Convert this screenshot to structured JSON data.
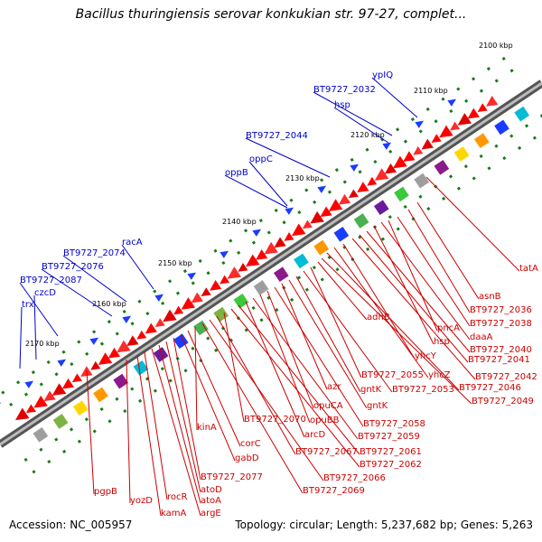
{
  "title": "Bacillus thuringiensis serovar konkukian str. 97-27, complet...",
  "footer": {
    "accession": "Accession: NC_005957",
    "stats": "Topology: circular; Length: 5,237,682 bp; Genes: 5,263"
  },
  "colors": {
    "forward_label": "#0000cc",
    "reverse_label": "#cc0000",
    "backbone": "#777777",
    "feature_red": "#ff0000",
    "feature_blue": "#1a3cff",
    "tick_green": "#1a7a1a"
  },
  "ticks": [
    "2100 kbp",
    "2110 kbp",
    "2120 kbp",
    "2130 kbp",
    "2140 kbp",
    "2150 kbp",
    "2160 kbp",
    "2170 kbp"
  ],
  "labels_forward": [
    "ypIQ",
    "BT9727_2032",
    "hsp",
    "BT9727_2044",
    "oppC",
    "oppB",
    "racA",
    "BT9727_2074",
    "BT9727_2076",
    "BT9727_2087",
    "czcD",
    "trx"
  ],
  "labels_reverse": [
    "tatA",
    "asnB",
    "BT9727_2036",
    "BT9727_2038",
    "pncA",
    "daaA",
    "hsp",
    "BT9727_2040",
    "BT9727_2041",
    "BT9727_2042",
    " yhcY",
    "yhcZ",
    "BT9727_2046",
    "BT9727_2049",
    "adhB",
    "BT9727_2055",
    "BT9727_2053",
    "gntK",
    "gntK",
    "azr",
    "BT9727_2058",
    "opuCA",
    "opuBB",
    "BT9727_2059",
    "arcD",
    "BT9727_2061",
    "BT9727_2062",
    "BT9727_2070",
    "BT9727_2067",
    "BT9727_2066",
    "BT9727_2069",
    "kinA",
    "corC",
    "gabD",
    "BT9727_2077",
    "atoD",
    "atoA",
    "argE",
    "rocR",
    "kamA",
    "yozD",
    "pgpB"
  ]
}
